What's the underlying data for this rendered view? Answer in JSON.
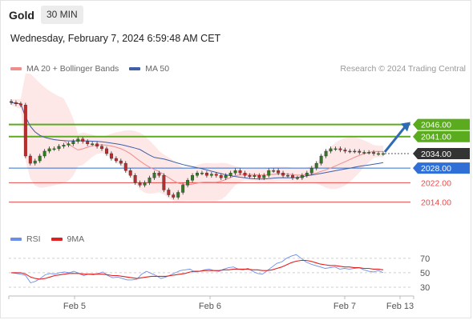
{
  "header": {
    "symbol": "Gold",
    "interval": "30 MIN",
    "datetime": "Wednesday, February 7, 2024 6:59:48 AM CET",
    "credit": "Research © 2024 Trading Central"
  },
  "legend": {
    "bollinger": "MA 20 + Bollinger Bands",
    "ma50": "MA 50",
    "rsi": "RSI",
    "ma9": "9MA"
  },
  "colors": {
    "support": "#e84b4b",
    "pivot": "#2f6fd6",
    "resistance": "#5aab1e",
    "current": "#333333",
    "bollinger_fill": "#fde3e3",
    "ma20": "#f08d8d",
    "ma50": "#3f60a8",
    "rsi": "#6b8ee8",
    "rsi_ma": "#e02020",
    "up_candle": "#2e7d1f",
    "down_candle": "#c62828",
    "arrow": "#2e6bb3"
  },
  "chart_data": [
    {
      "type": "candlestick",
      "title": "Gold",
      "x_labels": [
        "Feb 5",
        "Feb 6",
        "Feb 7",
        "Feb 13"
      ],
      "price_range": [
        2003,
        2063
      ],
      "levels": [
        {
          "label": "2046.00",
          "value": 2046.0,
          "kind": "resistance"
        },
        {
          "label": "2041.00",
          "value": 2041.0,
          "kind": "resistance"
        },
        {
          "label": "2034.00",
          "value": 2034.0,
          "kind": "current"
        },
        {
          "label": "2028.00",
          "value": 2028.0,
          "kind": "pivot"
        },
        {
          "label": "2022.00",
          "value": 2022.0,
          "kind": "support"
        },
        {
          "label": "2014.00",
          "value": 2014.0,
          "kind": "support"
        }
      ],
      "close_series": [
        2055,
        2054.5,
        2054,
        2033,
        2030,
        2031,
        2033,
        2035,
        2036,
        2036,
        2037,
        2037.5,
        2038,
        2039,
        2040,
        2039,
        2038,
        2038,
        2037,
        2036,
        2034,
        2032,
        2031,
        2030,
        2027,
        2025,
        2022,
        2021,
        2022,
        2024,
        2026,
        2025,
        2019,
        2017,
        2016,
        2018,
        2021,
        2023,
        2025,
        2026,
        2026,
        2025,
        2025.5,
        2025,
        2024,
        2025,
        2026,
        2027,
        2026,
        2025,
        2024.5,
        2025,
        2024,
        2025,
        2027,
        2027,
        2026,
        2025,
        2025,
        2024,
        2024,
        2025,
        2026,
        2028,
        2030,
        2033,
        2035,
        2036,
        2036,
        2035.5,
        2035,
        2035,
        2035,
        2034.5,
        2034.5,
        2034.5,
        2034,
        2034,
        2034
      ],
      "forecast_target": 2047
    },
    {
      "type": "line",
      "title": "RSI",
      "y_ticks": [
        70,
        50,
        30
      ],
      "y_range": [
        20,
        82
      ],
      "series": [
        {
          "name": "RSI",
          "values": [
            50,
            49,
            48,
            46,
            36,
            38,
            42,
            47,
            49,
            48,
            50,
            51,
            50,
            52,
            49,
            46,
            48,
            47,
            49,
            51,
            46,
            43,
            44,
            42,
            40,
            40,
            41,
            48,
            52,
            49,
            46,
            42,
            44,
            47,
            50,
            53,
            54,
            55,
            51,
            52,
            54,
            55,
            53,
            52,
            55,
            57,
            58,
            55,
            54,
            56,
            52,
            49,
            48,
            53,
            58,
            63,
            65,
            70,
            73,
            75,
            70,
            65,
            62,
            60,
            58,
            56,
            57,
            58,
            55,
            56,
            55,
            56,
            57,
            54,
            52,
            51,
            53,
            50
          ]
        },
        {
          "name": "9MA",
          "values": [
            50,
            50,
            50,
            48,
            44,
            42,
            41,
            42,
            44,
            46,
            47,
            48,
            49,
            49,
            49,
            48,
            48,
            48,
            48,
            48,
            47,
            46,
            46,
            45,
            44,
            43,
            42,
            43,
            44,
            45,
            45,
            45,
            45,
            46,
            47,
            48,
            49,
            51,
            52,
            52,
            53,
            53,
            53,
            53,
            54,
            54,
            55,
            55,
            55,
            55,
            54,
            54,
            53,
            53,
            54,
            56,
            58,
            61,
            64,
            66,
            67,
            67,
            66,
            64,
            62,
            61,
            60,
            60,
            59,
            58,
            58,
            57,
            57,
            56,
            56,
            55,
            55,
            54
          ]
        }
      ]
    }
  ]
}
